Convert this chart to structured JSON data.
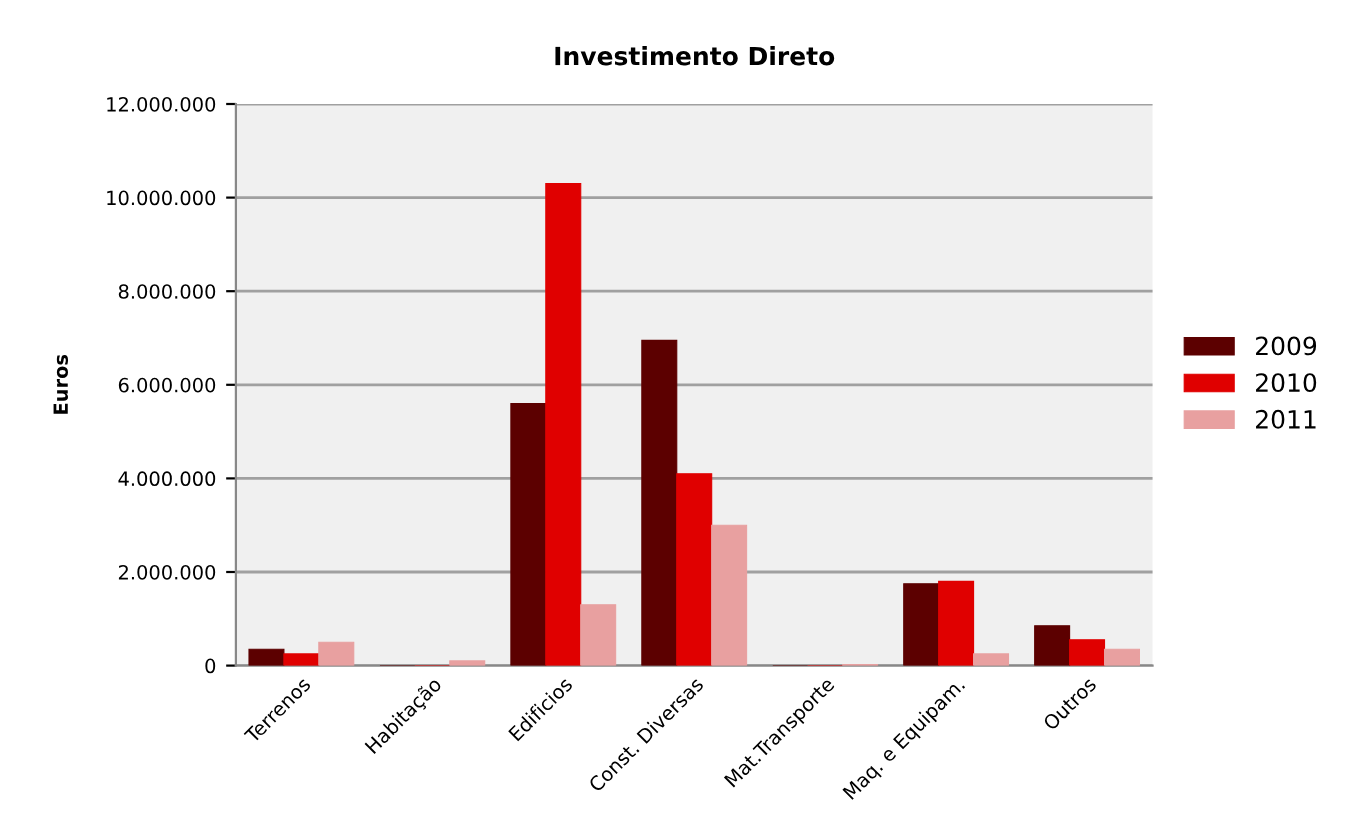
{
  "chart_data": {
    "type": "bar",
    "title": "Investimento Direto",
    "ylabel": "Euros",
    "categories": [
      "Terrenos",
      "Habitação",
      "Edificios",
      "Const. Diversas",
      "Mat.Transporte",
      "Maq. e Equipam.",
      "Outros"
    ],
    "series": [
      {
        "name": "2009",
        "color": "#5c0000",
        "values": [
          350000,
          0,
          5600000,
          6950000,
          0,
          1750000,
          850000
        ]
      },
      {
        "name": "2010",
        "color": "#e00000",
        "values": [
          250000,
          0,
          10300000,
          4100000,
          0,
          1800000,
          550000
        ]
      },
      {
        "name": "2011",
        "color": "#e8a0a0",
        "values": [
          500000,
          100000,
          1300000,
          3000000,
          20000,
          250000,
          350000
        ]
      }
    ],
    "ylim": [
      0,
      12000000
    ],
    "yticks": [
      {
        "value": 0,
        "label": "0"
      },
      {
        "value": 2000000,
        "label": "2.000.000"
      },
      {
        "value": 4000000,
        "label": "4.000.000"
      },
      {
        "value": 6000000,
        "label": "6.000.000"
      },
      {
        "value": 8000000,
        "label": "8.000.000"
      },
      {
        "value": 10000000,
        "label": "10.000.000"
      },
      {
        "value": 12000000,
        "label": "12.000.000"
      }
    ],
    "grid": "y",
    "legend": "right"
  }
}
